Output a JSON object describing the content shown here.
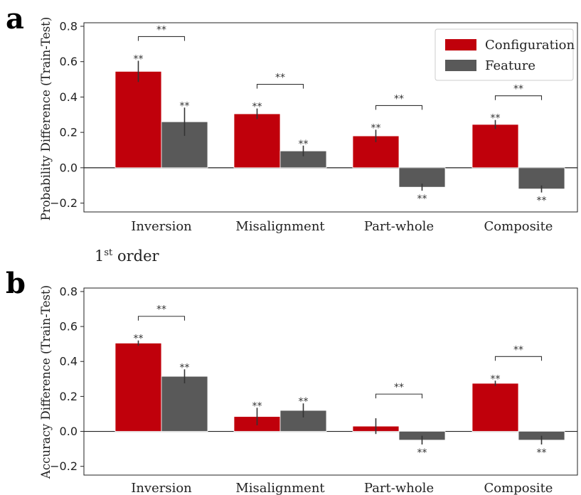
{
  "chart_data": [
    {
      "type": "bar",
      "panel_label": "a",
      "ylabel": "Probability Difference (Train-Test)",
      "xlabel": "",
      "ylim": [
        -0.25,
        0.82
      ],
      "yticks": [
        "0.8",
        "0.6",
        "0.4",
        "0.2",
        "0.0",
        "−0.2"
      ],
      "yticks_values": [
        0.8,
        0.6,
        0.4,
        0.2,
        0.0,
        -0.2
      ],
      "categories": [
        "Inversion",
        "Misalignment",
        "Part-whole",
        "Composite"
      ],
      "series": [
        {
          "name": "Configuration",
          "color": "#c0000b",
          "values": [
            0.545,
            0.305,
            0.18,
            0.245
          ],
          "errors": [
            0.06,
            0.03,
            0.035,
            0.025
          ],
          "sig": [
            "**",
            "**",
            "**",
            "**"
          ]
        },
        {
          "name": "Feature",
          "color": "#595959",
          "values": [
            0.26,
            0.095,
            -0.11,
            -0.12
          ],
          "errors": [
            0.08,
            0.03,
            0.02,
            0.02
          ],
          "sig": [
            "**",
            "**",
            "**",
            "**"
          ]
        }
      ],
      "comparison_sig": [
        "**",
        "**",
        "**",
        "**"
      ],
      "legend": {
        "position": "top-right",
        "entries": [
          "Configuration",
          "Feature"
        ]
      },
      "grid": false
    },
    {
      "type": "bar",
      "panel_label": "b",
      "ylabel": "Accuracy Difference (Train-Test)",
      "xlabel": "",
      "ylim": [
        -0.25,
        0.82
      ],
      "yticks": [
        "0.8",
        "0.6",
        "0.4",
        "0.2",
        "0.0",
        "−0.2"
      ],
      "yticks_values": [
        0.8,
        0.6,
        0.4,
        0.2,
        0.0,
        -0.2
      ],
      "categories": [
        "Inversion",
        "Misalignment",
        "Part-whole",
        "Composite"
      ],
      "series": [
        {
          "name": "Configuration",
          "color": "#c0000b",
          "values": [
            0.505,
            0.085,
            0.03,
            0.275
          ],
          "errors": [
            0.015,
            0.05,
            0.045,
            0.015
          ],
          "sig": [
            "**",
            "**",
            "",
            "**"
          ]
        },
        {
          "name": "Feature",
          "color": "#595959",
          "values": [
            0.315,
            0.12,
            -0.05,
            -0.05
          ],
          "errors": [
            0.04,
            0.04,
            0.025,
            0.025
          ],
          "sig": [
            "**",
            "**",
            "**",
            "**"
          ]
        }
      ],
      "comparison_sig": [
        "**",
        "",
        "**",
        "**"
      ],
      "grid": false
    }
  ],
  "order_label": {
    "base": "1",
    "sup": "st",
    "rest": " order"
  }
}
